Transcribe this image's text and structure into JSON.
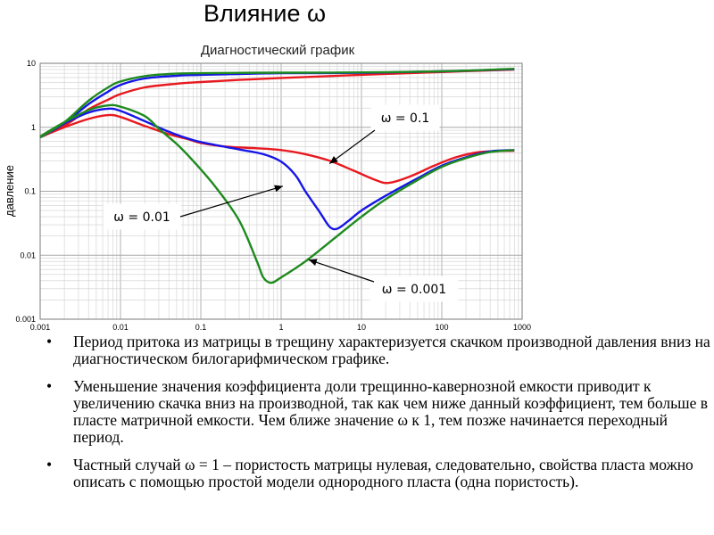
{
  "slide": {
    "title": "Влияние ω"
  },
  "chart_data": {
    "type": "line",
    "title": "Диагностический график",
    "xlabel": "",
    "ylabel": "давление",
    "xscale": "log",
    "yscale": "log",
    "xlim": [
      0.001,
      1000
    ],
    "ylim": [
      0.001,
      10
    ],
    "grid": true,
    "x_ticks": [
      "0.001",
      "0.01",
      "0.1",
      "1",
      "10",
      "100",
      "1000"
    ],
    "y_ticks": [
      "0.001",
      "0.01",
      "0.1",
      "1",
      "10"
    ],
    "series": [
      {
        "color": "#e8191f",
        "label": "ω = 0.1",
        "pressure": [
          [
            0.001,
            0.7
          ],
          [
            0.002,
            1.05
          ],
          [
            0.004,
            1.9
          ],
          [
            0.007,
            2.7
          ],
          [
            0.01,
            3.3
          ],
          [
            0.02,
            4.2
          ],
          [
            0.05,
            4.8
          ],
          [
            0.1,
            5.1
          ],
          [
            0.3,
            5.5
          ],
          [
            1,
            5.9
          ],
          [
            10,
            6.6
          ],
          [
            100,
            7.3
          ],
          [
            800,
            8.0
          ]
        ],
        "derivative": [
          [
            0.001,
            0.7
          ],
          [
            0.002,
            1.0
          ],
          [
            0.004,
            1.35
          ],
          [
            0.007,
            1.55
          ],
          [
            0.01,
            1.45
          ],
          [
            0.02,
            1.05
          ],
          [
            0.04,
            0.78
          ],
          [
            0.07,
            0.65
          ],
          [
            0.1,
            0.57
          ],
          [
            0.2,
            0.5
          ],
          [
            0.5,
            0.47
          ],
          [
            1,
            0.44
          ],
          [
            2,
            0.38
          ],
          [
            4,
            0.3
          ],
          [
            8,
            0.21
          ],
          [
            15,
            0.15
          ],
          [
            22,
            0.135
          ],
          [
            40,
            0.17
          ],
          [
            80,
            0.25
          ],
          [
            150,
            0.34
          ],
          [
            300,
            0.41
          ],
          [
            800,
            0.43
          ]
        ]
      },
      {
        "color": "#1515e8",
        "label": "ω = 0.01",
        "pressure": [
          [
            0.001,
            0.7
          ],
          [
            0.002,
            1.15
          ],
          [
            0.004,
            2.3
          ],
          [
            0.007,
            3.6
          ],
          [
            0.01,
            4.6
          ],
          [
            0.02,
            5.8
          ],
          [
            0.05,
            6.4
          ],
          [
            0.1,
            6.6
          ],
          [
            0.3,
            6.8
          ],
          [
            1,
            7.0
          ],
          [
            10,
            7.1
          ],
          [
            100,
            7.5
          ],
          [
            800,
            8.1
          ]
        ],
        "derivative": [
          [
            0.001,
            0.7
          ],
          [
            0.002,
            1.15
          ],
          [
            0.004,
            1.7
          ],
          [
            0.007,
            1.95
          ],
          [
            0.01,
            1.8
          ],
          [
            0.02,
            1.25
          ],
          [
            0.04,
            0.85
          ],
          [
            0.08,
            0.63
          ],
          [
            0.15,
            0.53
          ],
          [
            0.3,
            0.45
          ],
          [
            0.6,
            0.38
          ],
          [
            1,
            0.29
          ],
          [
            1.5,
            0.18
          ],
          [
            2,
            0.1
          ],
          [
            3,
            0.048
          ],
          [
            4,
            0.028
          ],
          [
            5,
            0.026
          ],
          [
            7,
            0.035
          ],
          [
            10,
            0.05
          ],
          [
            20,
            0.085
          ],
          [
            50,
            0.16
          ],
          [
            100,
            0.25
          ],
          [
            200,
            0.34
          ],
          [
            400,
            0.42
          ],
          [
            800,
            0.44
          ]
        ]
      },
      {
        "color": "#1e8a1e",
        "label": "ω = 0.001",
        "pressure": [
          [
            0.001,
            0.7
          ],
          [
            0.002,
            1.2
          ],
          [
            0.004,
            2.6
          ],
          [
            0.007,
            4.2
          ],
          [
            0.01,
            5.2
          ],
          [
            0.02,
            6.3
          ],
          [
            0.05,
            6.9
          ],
          [
            0.1,
            7.0
          ],
          [
            0.3,
            7.1
          ],
          [
            1,
            7.15
          ],
          [
            10,
            7.2
          ],
          [
            100,
            7.5
          ],
          [
            800,
            8.2
          ]
        ],
        "derivative": [
          [
            0.001,
            0.72
          ],
          [
            0.002,
            1.2
          ],
          [
            0.004,
            1.85
          ],
          [
            0.007,
            2.2
          ],
          [
            0.01,
            2.1
          ],
          [
            0.02,
            1.5
          ],
          [
            0.03,
            0.95
          ],
          [
            0.05,
            0.55
          ],
          [
            0.08,
            0.3
          ],
          [
            0.15,
            0.12
          ],
          [
            0.3,
            0.035
          ],
          [
            0.5,
            0.008
          ],
          [
            0.6,
            0.0045
          ],
          [
            0.75,
            0.0037
          ],
          [
            1,
            0.0045
          ],
          [
            2,
            0.008
          ],
          [
            5,
            0.02
          ],
          [
            10,
            0.04
          ],
          [
            20,
            0.075
          ],
          [
            50,
            0.15
          ],
          [
            100,
            0.24
          ],
          [
            200,
            0.33
          ],
          [
            400,
            0.41
          ],
          [
            800,
            0.44
          ]
        ]
      }
    ],
    "annotations": [
      {
        "text": "ω = 0.1",
        "series_index": 0,
        "target": [
          4.0,
          0.27
        ]
      },
      {
        "text": "ω = 0.01",
        "series_index": 1,
        "target": [
          1.05,
          0.12
        ]
      },
      {
        "text": "ω = 0.001",
        "series_index": 2,
        "target": [
          2.2,
          0.0085
        ]
      }
    ]
  },
  "bullets": [
    {
      "marker": "•",
      "text": "Период притока из матрицы в трещину  характеризуется скачком производной давления вниз на диагностическом билогарифмическом графике."
    },
    {
      "marker": "•",
      "text": "Уменьшение значения коэффициента доли трещинно-кавернозной емкости приводит к увеличению скачка вниз на производной, так как чем ниже данный коэффициент, тем больше в пласте матричной емкости. Чем ближе значение ω к 1, тем позже начинается переходный период."
    },
    {
      "marker": "•",
      "text": "Частный случай ω = 1 – пористость матрицы нулевая, следовательно, свойства пласта можно описать с помощью простой модели однородного пласта (одна пористость)."
    }
  ]
}
